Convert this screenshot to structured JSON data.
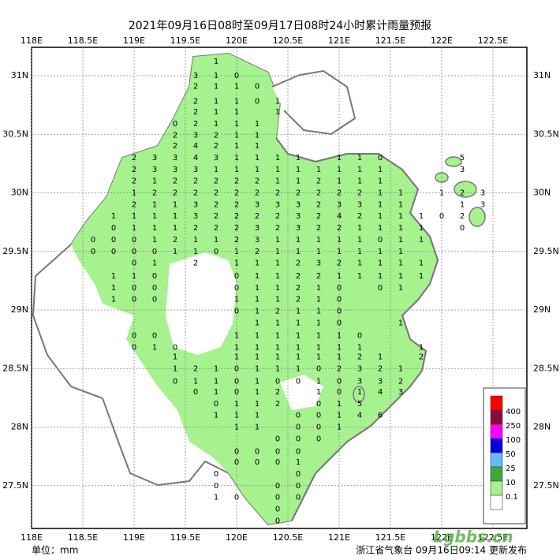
{
  "title": "2021年09月16日08时至09月17日08时24小时累计雨量预报",
  "lon_ticks": [
    {
      "value": 118,
      "label": "118E"
    },
    {
      "value": 118.5,
      "label": "118.5E"
    },
    {
      "value": 119,
      "label": "119E"
    },
    {
      "value": 119.5,
      "label": "119.5E"
    },
    {
      "value": 120,
      "label": "120E"
    },
    {
      "value": 120.5,
      "label": "120.5E"
    },
    {
      "value": 121,
      "label": "121E"
    },
    {
      "value": 121.5,
      "label": "121.5E"
    },
    {
      "value": 122,
      "label": "122E"
    },
    {
      "value": 122.5,
      "label": "122.5E"
    }
  ],
  "lat_ticks": [
    {
      "value": 31,
      "label": "31N"
    },
    {
      "value": 30.5,
      "label": "30.5N"
    },
    {
      "value": 30,
      "label": "30N"
    },
    {
      "value": 29.5,
      "label": "29.5N"
    },
    {
      "value": 29,
      "label": "29N"
    },
    {
      "value": 28.5,
      "label": "28.5N"
    },
    {
      "value": 28,
      "label": "28N"
    },
    {
      "value": 27.5,
      "label": "27.5N"
    }
  ],
  "legend": [
    {
      "label": "400",
      "color": "#ff0000"
    },
    {
      "label": "250",
      "color": "#8b0a3c"
    },
    {
      "label": "100",
      "color": "#ff00ff"
    },
    {
      "label": "50",
      "color": "#0000dd"
    },
    {
      "label": "25",
      "color": "#66b8ff"
    },
    {
      "label": "10",
      "color": "#3ca83c"
    },
    {
      "label": "0.1",
      "color": "#a6f28f"
    }
  ],
  "unit": "单位：mm",
  "footer": "浙江省气象台 09月16日09:14 更新发布",
  "watermark": "Lgbbs.cn",
  "stations": {
    "lons": [
      118.6,
      118.8,
      119,
      119.2,
      119.4,
      119.6,
      119.8,
      120,
      120.2,
      120.4,
      120.6,
      120.8,
      121,
      121.2,
      121.4,
      121.6,
      121.8,
      122,
      122.2,
      122.4
    ],
    "rows": [
      {
        "lat": 31.12,
        "values": [
          null,
          null,
          null,
          null,
          null,
          null,
          1,
          null,
          null,
          null,
          null,
          null,
          null,
          null,
          null,
          null,
          null,
          null,
          null,
          null
        ]
      },
      {
        "lat": 31.0,
        "values": [
          null,
          null,
          null,
          null,
          null,
          3,
          1,
          0,
          null,
          null,
          null,
          null,
          null,
          null,
          null,
          null,
          null,
          null,
          null,
          null
        ]
      },
      {
        "lat": 30.91,
        "values": [
          null,
          null,
          null,
          null,
          null,
          2,
          1,
          1,
          0,
          null,
          null,
          null,
          null,
          null,
          null,
          null,
          null,
          null,
          null,
          null
        ]
      },
      {
        "lat": 30.78,
        "values": [
          null,
          null,
          null,
          null,
          null,
          2,
          1,
          1,
          0,
          1,
          null,
          null,
          null,
          null,
          null,
          null,
          null,
          null,
          null,
          null
        ]
      },
      {
        "lat": 30.69,
        "values": [
          null,
          null,
          null,
          null,
          null,
          2,
          1,
          1,
          null,
          1,
          null,
          null,
          null,
          null,
          null,
          null,
          null,
          null,
          null,
          null
        ]
      },
      {
        "lat": 30.59,
        "values": [
          null,
          null,
          null,
          null,
          0,
          2,
          1,
          1,
          1,
          null,
          null,
          null,
          null,
          null,
          null,
          null,
          null,
          null,
          null,
          null
        ]
      },
      {
        "lat": 30.49,
        "values": [
          null,
          null,
          null,
          null,
          2,
          3,
          2,
          1,
          1,
          null,
          null,
          null,
          null,
          null,
          null,
          null,
          null,
          null,
          null,
          null
        ]
      },
      {
        "lat": 30.4,
        "values": [
          null,
          null,
          null,
          null,
          2,
          4,
          2,
          1,
          1,
          null,
          null,
          null,
          null,
          null,
          null,
          null,
          null,
          null,
          null,
          null
        ]
      },
      {
        "lat": 30.3,
        "values": [
          null,
          null,
          2,
          3,
          3,
          4,
          3,
          1,
          1,
          1,
          1,
          null,
          1,
          1,
          0,
          null,
          null,
          null,
          5,
          null
        ]
      },
      {
        "lat": 30.2,
        "values": [
          null,
          null,
          2,
          3,
          3,
          3,
          1,
          1,
          1,
          1,
          1,
          1,
          1,
          1,
          1,
          null,
          null,
          null,
          3,
          null
        ]
      },
      {
        "lat": 30.1,
        "values": [
          null,
          null,
          2,
          1,
          2,
          2,
          2,
          2,
          2,
          1,
          1,
          2,
          1,
          1,
          1,
          null,
          null,
          null,
          null,
          null
        ]
      },
      {
        "lat": 30.0,
        "values": [
          null,
          null,
          1,
          2,
          2,
          2,
          2,
          2,
          2,
          2,
          2,
          2,
          2,
          2,
          1,
          1,
          null,
          1,
          2,
          3
        ]
      },
      {
        "lat": 29.9,
        "values": [
          null,
          null,
          2,
          1,
          1,
          3,
          2,
          2,
          3,
          3,
          3,
          2,
          3,
          3,
          1,
          1,
          null,
          null,
          1,
          3
        ]
      },
      {
        "lat": 29.8,
        "values": [
          null,
          1,
          1,
          1,
          1,
          3,
          2,
          2,
          2,
          2,
          3,
          2,
          4,
          2,
          1,
          1,
          1,
          0,
          2,
          null
        ]
      },
      {
        "lat": 29.7,
        "values": [
          null,
          0,
          1,
          1,
          1,
          2,
          2,
          2,
          3,
          2,
          3,
          2,
          2,
          1,
          1,
          1,
          1,
          null,
          0,
          null
        ]
      },
      {
        "lat": 29.6,
        "values": [
          0,
          0,
          0,
          1,
          2,
          1,
          1,
          2,
          3,
          1,
          1,
          1,
          1,
          1,
          0,
          1,
          1,
          null,
          null,
          null
        ]
      },
      {
        "lat": 29.5,
        "values": [
          0,
          0,
          0,
          0,
          1,
          1,
          0,
          1,
          2,
          1,
          1,
          1,
          1,
          1,
          1,
          1,
          null,
          null,
          null,
          null
        ]
      },
      {
        "lat": 29.4,
        "values": [
          null,
          null,
          0,
          1,
          null,
          2,
          null,
          1,
          1,
          1,
          2,
          3,
          2,
          1,
          1,
          1,
          1,
          null,
          null,
          null
        ]
      },
      {
        "lat": 29.29,
        "values": [
          null,
          1,
          1,
          0,
          null,
          null,
          null,
          0,
          1,
          1,
          2,
          2,
          1,
          1,
          1,
          1,
          1,
          null,
          null,
          null
        ]
      },
      {
        "lat": 29.19,
        "values": [
          null,
          1,
          0,
          0,
          null,
          null,
          null,
          0,
          1,
          1,
          2,
          1,
          0,
          null,
          0,
          1,
          null,
          null,
          null,
          null
        ]
      },
      {
        "lat": 29.09,
        "values": [
          null,
          1,
          0,
          0,
          null,
          null,
          null,
          1,
          1,
          1,
          2,
          1,
          0,
          null,
          null,
          null,
          null,
          null,
          null,
          null
        ]
      },
      {
        "lat": 28.99,
        "values": [
          null,
          null,
          null,
          null,
          null,
          null,
          null,
          0,
          1,
          2,
          1,
          1,
          0,
          null,
          null,
          null,
          null,
          null,
          null,
          null
        ]
      },
      {
        "lat": 28.89,
        "values": [
          null,
          null,
          null,
          null,
          null,
          null,
          null,
          null,
          1,
          1,
          1,
          1,
          0,
          null,
          null,
          1,
          null,
          null,
          null,
          null
        ]
      },
      {
        "lat": 28.78,
        "values": [
          null,
          null,
          0,
          0,
          null,
          null,
          null,
          1,
          1,
          1,
          1,
          1,
          1,
          0,
          null,
          null,
          null,
          null,
          null,
          null
        ]
      },
      {
        "lat": 28.68,
        "values": [
          null,
          null,
          0,
          1,
          0,
          null,
          null,
          1,
          1,
          1,
          1,
          1,
          1,
          1,
          null,
          null,
          1,
          null,
          null,
          null
        ]
      },
      {
        "lat": 28.6,
        "values": [
          null,
          null,
          null,
          null,
          1,
          null,
          null,
          1,
          1,
          1,
          1,
          1,
          1,
          2,
          1,
          null,
          2,
          null,
          null,
          null
        ]
      },
      {
        "lat": 28.5,
        "values": [
          null,
          null,
          null,
          null,
          1,
          2,
          1,
          0,
          1,
          1,
          1,
          0,
          2,
          3,
          2,
          1,
          null,
          null,
          null,
          null
        ]
      },
      {
        "lat": 28.39,
        "values": [
          null,
          null,
          null,
          null,
          0,
          1,
          1,
          0,
          1,
          0,
          0,
          1,
          0,
          3,
          3,
          2,
          null,
          null,
          null,
          null
        ]
      },
      {
        "lat": 28.3,
        "values": [
          null,
          null,
          null,
          null,
          null,
          0,
          1,
          0,
          1,
          2,
          null,
          1,
          0,
          1,
          4,
          3,
          null,
          null,
          null,
          null
        ]
      },
      {
        "lat": 28.2,
        "values": [
          null,
          null,
          null,
          null,
          null,
          null,
          0,
          1,
          1,
          2,
          null,
          0,
          1,
          5,
          null,
          null,
          null,
          null,
          null,
          null
        ]
      },
      {
        "lat": 28.1,
        "values": [
          null,
          null,
          null,
          null,
          null,
          null,
          1,
          1,
          1,
          null,
          0,
          0,
          1,
          4,
          6,
          null,
          null,
          null,
          null,
          null
        ]
      },
      {
        "lat": 28.0,
        "values": [
          null,
          null,
          null,
          null,
          null,
          null,
          null,
          1,
          1,
          null,
          0,
          0,
          1,
          null,
          null,
          null,
          null,
          null,
          null,
          null
        ]
      },
      {
        "lat": 27.9,
        "values": [
          null,
          null,
          null,
          null,
          null,
          null,
          null,
          null,
          null,
          0,
          0,
          0,
          null,
          null,
          null,
          null,
          null,
          null,
          null,
          null
        ]
      },
      {
        "lat": 27.79,
        "values": [
          null,
          null,
          null,
          null,
          null,
          null,
          null,
          0,
          0,
          0,
          0,
          null,
          null,
          null,
          null,
          null,
          null,
          null,
          null,
          null
        ]
      },
      {
        "lat": 27.7,
        "values": [
          null,
          null,
          null,
          null,
          null,
          null,
          null,
          0,
          0,
          0,
          1,
          null,
          null,
          null,
          null,
          null,
          null,
          null,
          null,
          null
        ]
      },
      {
        "lat": 27.6,
        "values": [
          null,
          null,
          null,
          null,
          null,
          null,
          0,
          null,
          null,
          null,
          0,
          null,
          null,
          null,
          null,
          null,
          null,
          null,
          null,
          null
        ]
      },
      {
        "lat": 27.5,
        "values": [
          null,
          null,
          null,
          null,
          null,
          null,
          0,
          null,
          null,
          0,
          0,
          null,
          null,
          null,
          null,
          null,
          null,
          null,
          null,
          null
        ]
      },
      {
        "lat": 27.4,
        "values": [
          null,
          null,
          null,
          null,
          null,
          null,
          1,
          0,
          null,
          0,
          0,
          null,
          null,
          null,
          null,
          null,
          null,
          null,
          null,
          null
        ]
      },
      {
        "lat": 27.3,
        "values": [
          null,
          null,
          null,
          null,
          null,
          null,
          null,
          null,
          null,
          0,
          null,
          null,
          null,
          null,
          null,
          null,
          null,
          null,
          null,
          null
        ]
      },
      {
        "lat": 27.2,
        "values": [
          null,
          null,
          null,
          null,
          null,
          null,
          null,
          null,
          null,
          0,
          null,
          null,
          null,
          null,
          null,
          null,
          null,
          null,
          null,
          null
        ]
      }
    ]
  }
}
